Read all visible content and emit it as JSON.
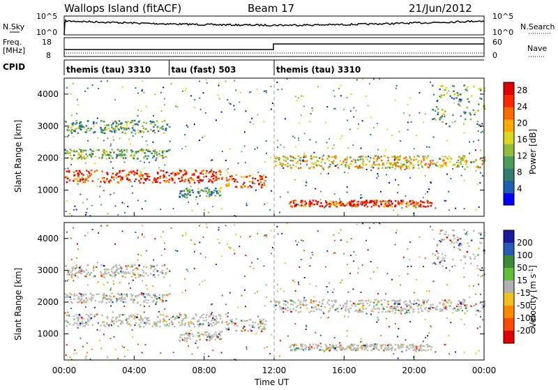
{
  "header": {
    "title_left": "Wallops Island (fitACF)",
    "title_center": "Beam 17",
    "title_right": "21/Jun/2012"
  },
  "top_strips": {
    "nsky_label": "N.Sky",
    "nsky_ticks": [
      "10^5",
      "10^0"
    ],
    "nsearch_label": "N.Search",
    "nsearch_ticks": [
      "10^5",
      "10^0"
    ],
    "freq_label": "Freq.",
    "freq_unit": "[MHz]",
    "freq_ticks": [
      "18",
      "8"
    ],
    "nave_label": "Nave",
    "nave_ticks": [
      "60",
      "0"
    ],
    "cpid_label": "CPID",
    "cpid_segments": [
      {
        "label": "themis (tau) 3310",
        "start_hour": 0,
        "end_hour": 6
      },
      {
        "label": "tau (fast) 503",
        "start_hour": 6,
        "end_hour": 12
      },
      {
        "label": "themis (tau) 3310",
        "start_hour": 12,
        "end_hour": 24
      }
    ]
  },
  "chart_data": [
    {
      "type": "heatmap",
      "name": "power",
      "ylabel": "Slant Range [km]",
      "xlabel": "Time UT",
      "x_range_hours": [
        0,
        24
      ],
      "y_range_km": [
        180,
        4500
      ],
      "y_ticks": [
        "1000",
        "2000",
        "3000",
        "4000"
      ],
      "x_ticks": [
        "00:00",
        "04:00",
        "08:00",
        "12:00",
        "16:00",
        "20:00",
        "00:00"
      ],
      "colorbar_label": "Power [dB]",
      "colorbar_ticks": [
        "4",
        "8",
        "12",
        "16",
        "20",
        "24",
        "28"
      ],
      "colorbar_range": [
        0,
        30
      ],
      "colors": [
        "#0000ff",
        "#1d5fb4",
        "#2f7d6e",
        "#4b9b5e",
        "#8fbf3a",
        "#d9d71e",
        "#ffaa00",
        "#ff6a00",
        "#ff2600",
        "#e00000"
      ],
      "echo_bands": [
        {
          "t_start": 0,
          "t_end": 9,
          "range_start": 1250,
          "range_end": 1650,
          "power_db": 26
        },
        {
          "t_start": 9.2,
          "t_end": 11.5,
          "range_start": 1100,
          "range_end": 1500,
          "power_db": 24
        },
        {
          "t_start": 12.8,
          "t_end": 21,
          "range_start": 500,
          "range_end": 700,
          "power_db": 26
        },
        {
          "t_start": 12,
          "t_end": 24,
          "range_start": 1700,
          "range_end": 2100,
          "power_db": 17
        },
        {
          "t_start": 0,
          "t_end": 6,
          "range_start": 2000,
          "range_end": 2300,
          "power_db": 12
        },
        {
          "t_start": 0,
          "t_end": 6,
          "range_start": 2800,
          "range_end": 3200,
          "power_db": 10
        },
        {
          "t_start": 6.5,
          "t_end": 9,
          "range_start": 800,
          "range_end": 1100,
          "power_db": 10
        },
        {
          "t_start": 21,
          "t_end": 24,
          "range_start": 3000,
          "range_end": 4300,
          "power_db": 12
        }
      ]
    },
    {
      "type": "heatmap",
      "name": "velocity",
      "ylabel": "Slant Range [km]",
      "xlabel": "Time UT",
      "x_range_hours": [
        0,
        24
      ],
      "y_range_km": [
        180,
        4500
      ],
      "y_ticks": [
        "1000",
        "2000",
        "3000",
        "4000"
      ],
      "x_ticks": [
        "00:00",
        "04:00",
        "08:00",
        "12:00",
        "16:00",
        "20:00",
        "00:00"
      ],
      "colorbar_label": "Velocity [m s",
      "colorbar_label_exponent": "-1",
      "colorbar_label_close": "]",
      "colorbar_ticks": [
        "200",
        "100",
        "50",
        "15",
        "-15",
        "-50",
        "-100",
        "-200"
      ],
      "colors": [
        "#1a1aa0",
        "#2a5ab8",
        "#3a8a3a",
        "#5fbf3a",
        "#b0b0b0",
        "#f0c020",
        "#ff8a00",
        "#ff4a00",
        "#e00000"
      ],
      "ground_scatter_color": "#bdbdb5"
    }
  ],
  "xaxis_title": "Time UT"
}
